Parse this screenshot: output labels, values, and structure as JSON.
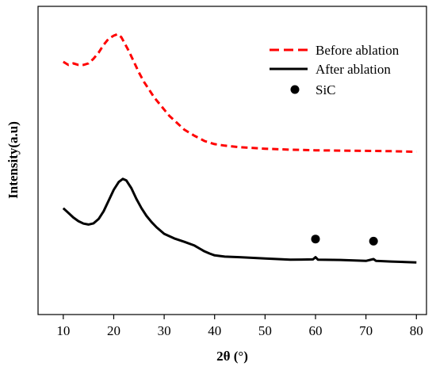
{
  "chart_data": {
    "type": "line",
    "title": "",
    "xlabel": "2θ (°)",
    "ylabel": "Intensity(a.u)",
    "xlim": [
      5,
      82
    ],
    "xticks": [
      10,
      20,
      30,
      40,
      50,
      60,
      70,
      80
    ],
    "xtick_labels": [
      "10",
      "20",
      "30",
      "40",
      "50",
      "60",
      "70",
      "80"
    ],
    "y_ticks_shown": false,
    "grid": false,
    "legend_position": "top-right",
    "series": [
      {
        "name": "Before ablation",
        "color": "#ff0000",
        "style": "dashed",
        "points": [
          [
            10,
            0.82
          ],
          [
            11,
            0.81
          ],
          [
            12,
            0.815
          ],
          [
            13,
            0.81
          ],
          [
            14,
            0.81
          ],
          [
            15,
            0.815
          ],
          [
            16,
            0.83
          ],
          [
            17,
            0.85
          ],
          [
            18,
            0.875
          ],
          [
            19,
            0.895
          ],
          [
            20,
            0.905
          ],
          [
            20.8,
            0.91
          ],
          [
            21.5,
            0.9
          ],
          [
            22,
            0.885
          ],
          [
            23,
            0.855
          ],
          [
            24,
            0.82
          ],
          [
            25,
            0.785
          ],
          [
            26,
            0.755
          ],
          [
            27,
            0.73
          ],
          [
            28,
            0.705
          ],
          [
            29,
            0.685
          ],
          [
            30,
            0.665
          ],
          [
            31,
            0.645
          ],
          [
            32,
            0.63
          ],
          [
            33,
            0.615
          ],
          [
            34,
            0.6
          ],
          [
            35,
            0.59
          ],
          [
            36,
            0.58
          ],
          [
            37,
            0.572
          ],
          [
            38,
            0.563
          ],
          [
            40,
            0.553
          ],
          [
            42,
            0.548
          ],
          [
            45,
            0.543
          ],
          [
            50,
            0.538
          ],
          [
            55,
            0.535
          ],
          [
            60,
            0.533
          ],
          [
            65,
            0.532
          ],
          [
            70,
            0.531
          ],
          [
            75,
            0.53
          ],
          [
            80,
            0.528
          ]
        ]
      },
      {
        "name": "After ablation",
        "color": "#000000",
        "style": "solid",
        "points": [
          [
            10,
            0.345
          ],
          [
            11,
            0.33
          ],
          [
            12,
            0.315
          ],
          [
            13,
            0.303
          ],
          [
            14,
            0.295
          ],
          [
            15,
            0.292
          ],
          [
            16,
            0.296
          ],
          [
            17,
            0.31
          ],
          [
            18,
            0.335
          ],
          [
            19,
            0.37
          ],
          [
            20,
            0.405
          ],
          [
            21,
            0.43
          ],
          [
            21.8,
            0.44
          ],
          [
            22.5,
            0.435
          ],
          [
            23.5,
            0.41
          ],
          [
            24.5,
            0.375
          ],
          [
            25.5,
            0.345
          ],
          [
            26.5,
            0.32
          ],
          [
            27.5,
            0.3
          ],
          [
            28.5,
            0.283
          ],
          [
            30,
            0.262
          ],
          [
            32,
            0.247
          ],
          [
            34,
            0.236
          ],
          [
            36,
            0.224
          ],
          [
            38,
            0.205
          ],
          [
            39,
            0.198
          ],
          [
            40,
            0.192
          ],
          [
            42,
            0.188
          ],
          [
            45,
            0.186
          ],
          [
            50,
            0.182
          ],
          [
            55,
            0.178
          ],
          [
            59.5,
            0.179
          ],
          [
            60,
            0.186
          ],
          [
            60.5,
            0.178
          ],
          [
            65,
            0.177
          ],
          [
            70,
            0.174
          ],
          [
            71.5,
            0.18
          ],
          [
            72,
            0.174
          ],
          [
            75,
            0.172
          ],
          [
            80,
            0.169
          ]
        ]
      }
    ],
    "markers": {
      "name": "SiC",
      "symbol": "circle",
      "color": "#000000",
      "points": [
        [
          60,
          0.245
        ],
        [
          71.5,
          0.238
        ]
      ]
    },
    "legend": [
      {
        "label": "Before ablation",
        "style": "dashed",
        "color": "#ff0000"
      },
      {
        "label": "After ablation",
        "style": "solid",
        "color": "#000000"
      },
      {
        "label": "SiC",
        "style": "marker",
        "color": "#000000"
      }
    ]
  }
}
